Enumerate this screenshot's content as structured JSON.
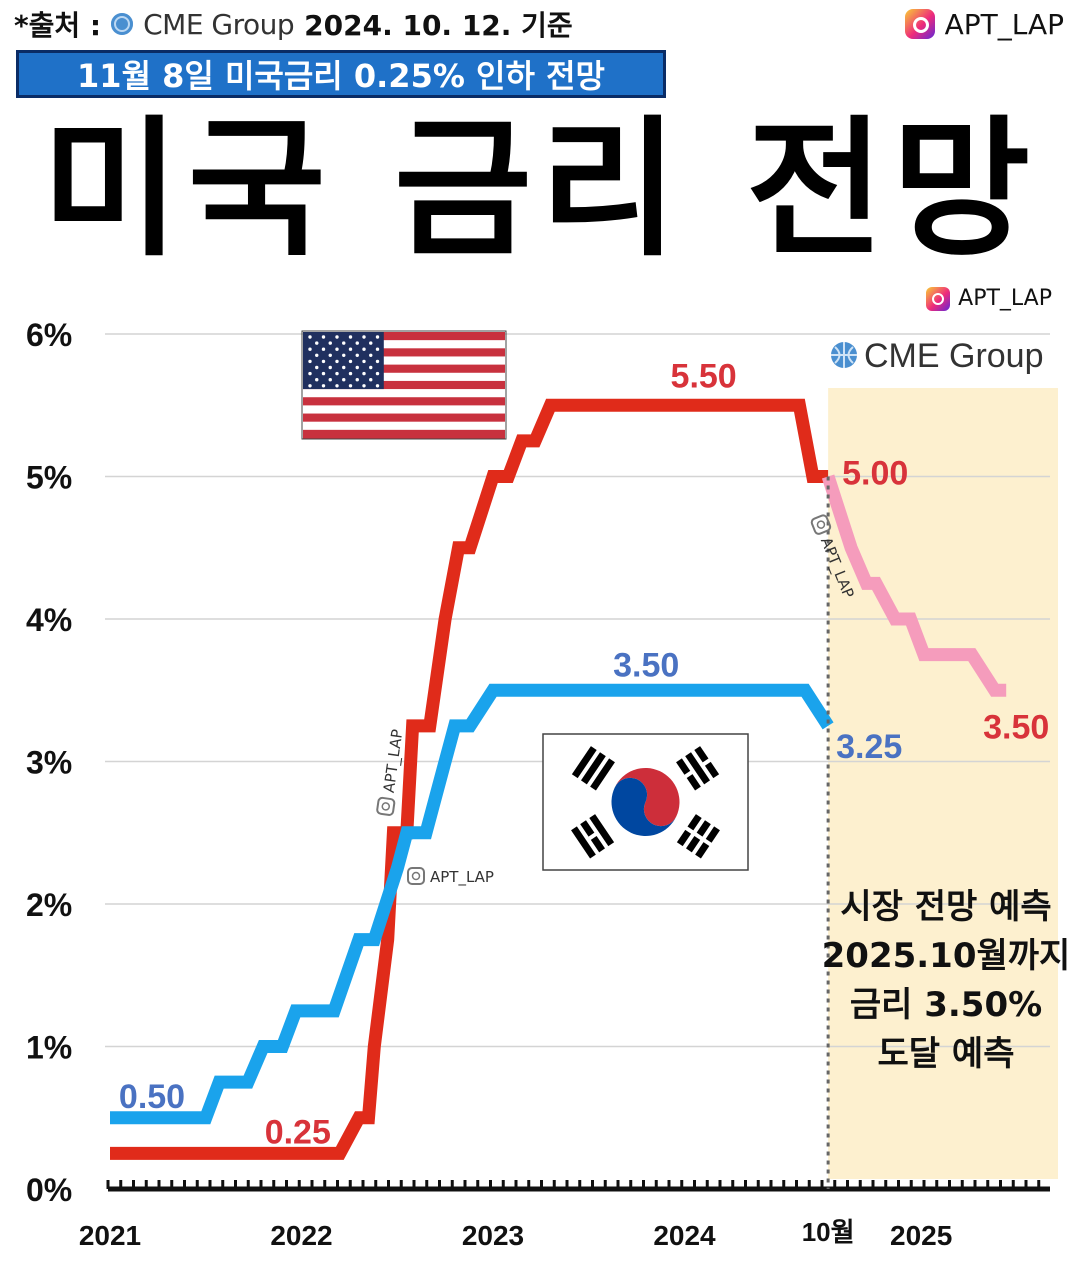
{
  "header": {
    "source_prefix": "*출처 :",
    "source_name": "CME Group",
    "source_date": "2024. 10. 12. 기준",
    "handle": "APT_LAP"
  },
  "subtitle": "11월 8일 미국금리 0.25% 인하 전망",
  "title": "미국 금리 전망",
  "chart_logo": "CME Group",
  "chart_handle": "APT_LAP",
  "watermarks": [
    "APT_LAP",
    "APT_LAP",
    "APT_LAP"
  ],
  "forecast_note": [
    "시장 전망 예측",
    "2025.10월까지",
    "금리 3.50%",
    "도달 예측"
  ],
  "colors": {
    "us": "#e02b1a",
    "us_forecast": "#f59cbc",
    "korea": "#1aa3ec",
    "forecast_bg": "#fdf0cf",
    "us_label": "#d8333a",
    "kr_label": "#4a72c2"
  },
  "chart_data": {
    "type": "line",
    "title": "미국 금리 전망",
    "xlabel": "",
    "ylabel": "",
    "ylim": [
      0,
      6
    ],
    "xlim": [
      2021,
      2025.95
    ],
    "y_ticks": [
      0,
      1,
      2,
      3,
      4,
      5,
      6
    ],
    "y_tick_labels": [
      "0%",
      "1%",
      "2%",
      "3%",
      "4%",
      "5%",
      "6%"
    ],
    "x_ticks": [
      2021,
      2022,
      2023,
      2024,
      2025
    ],
    "x_tick_labels": [
      "2021",
      "2022",
      "2023",
      "2024",
      "2025"
    ],
    "x_marker": {
      "x": 2024.75,
      "label": "10월"
    },
    "grid": true,
    "forecast_region": [
      2024.75,
      2025.95
    ],
    "series": [
      {
        "key": "us",
        "color": "#e02b1a",
        "points": [
          [
            2021,
            0.25
          ],
          [
            2022.2,
            0.25
          ],
          [
            2022.3,
            0.5
          ],
          [
            2022.35,
            0.5
          ],
          [
            2022.38,
            1.0
          ],
          [
            2022.45,
            1.75
          ],
          [
            2022.48,
            2.5
          ],
          [
            2022.55,
            2.5
          ],
          [
            2022.58,
            3.25
          ],
          [
            2022.67,
            3.25
          ],
          [
            2022.75,
            4.0
          ],
          [
            2022.82,
            4.5
          ],
          [
            2022.88,
            4.5
          ],
          [
            2023.0,
            5.0
          ],
          [
            2023.08,
            5.0
          ],
          [
            2023.15,
            5.25
          ],
          [
            2023.22,
            5.25
          ],
          [
            2023.3,
            5.5
          ],
          [
            2024.6,
            5.5
          ],
          [
            2024.67,
            5.0
          ],
          [
            2024.75,
            5.0
          ]
        ]
      },
      {
        "key": "korea",
        "color": "#1aa3ec",
        "points": [
          [
            2021,
            0.5
          ],
          [
            2021.5,
            0.5
          ],
          [
            2021.57,
            0.75
          ],
          [
            2021.72,
            0.75
          ],
          [
            2021.8,
            1.0
          ],
          [
            2021.9,
            1.0
          ],
          [
            2021.97,
            1.25
          ],
          [
            2022.17,
            1.25
          ],
          [
            2022.3,
            1.75
          ],
          [
            2022.38,
            1.75
          ],
          [
            2022.5,
            2.25
          ],
          [
            2022.55,
            2.5
          ],
          [
            2022.65,
            2.5
          ],
          [
            2022.75,
            3.0
          ],
          [
            2022.8,
            3.25
          ],
          [
            2022.88,
            3.25
          ],
          [
            2023.0,
            3.5
          ],
          [
            2024.63,
            3.5
          ],
          [
            2024.75,
            3.25
          ]
        ]
      },
      {
        "key": "us_forecast",
        "color": "#f59cbc",
        "points": [
          [
            2024.75,
            5.0
          ],
          [
            2024.87,
            4.5
          ],
          [
            2024.95,
            4.25
          ],
          [
            2025.0,
            4.25
          ],
          [
            2025.1,
            4.0
          ],
          [
            2025.18,
            4.0
          ],
          [
            2025.25,
            3.75
          ],
          [
            2025.5,
            3.75
          ],
          [
            2025.62,
            3.5
          ],
          [
            2025.68,
            3.5
          ]
        ]
      }
    ],
    "annotations": [
      {
        "x": 2024.1,
        "y": 5.5,
        "text": "5.50",
        "color": "us_label"
      },
      {
        "x": 2024.75,
        "y": 5.0,
        "text": "5.00",
        "color": "us_label"
      },
      {
        "x": 2025.68,
        "y": 3.5,
        "text": "3.50",
        "color": "us_label"
      },
      {
        "x": 2022.2,
        "y": 0.25,
        "text": "0.25",
        "color": "us_label"
      },
      {
        "x": 2021,
        "y": 0.5,
        "text": "0.50",
        "color": "kr_label"
      },
      {
        "x": 2023.8,
        "y": 3.5,
        "text": "3.50",
        "color": "kr_label"
      },
      {
        "x": 2024.75,
        "y": 3.25,
        "text": "3.25",
        "color": "kr_label"
      }
    ]
  }
}
